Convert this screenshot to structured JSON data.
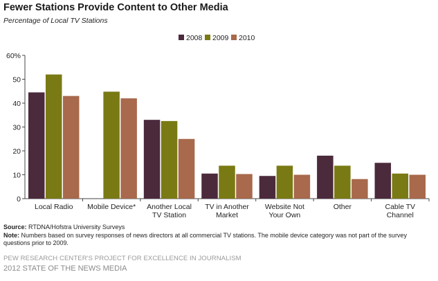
{
  "header": {
    "title": "Fewer Stations Provide Content to Other Media",
    "subtitle": "Percentage of Local TV Stations"
  },
  "footer": {
    "source_label": "Source:",
    "source_text": "RTDNA/Hofstra University Surveys",
    "note_label": "Note:",
    "note_text": "Numbers based on survey responses of news directors at all commercial TV stations. The mobile device category was not part of the survey questions prior to 2009.",
    "org_line": "PEW RESEARCH CENTER'S PROJECT FOR EXCELLENCE IN JOURNALISM",
    "report_line": "2012 STATE OF THE NEWS MEDIA"
  },
  "chart_data": {
    "type": "bar",
    "title": "Fewer Stations Provide Content to Other Media",
    "subtitle": "Percentage of Local TV Stations",
    "categories": [
      [
        "Local Radio"
      ],
      [
        "Mobile Device*"
      ],
      [
        "Another Local",
        "TV Station"
      ],
      [
        "TV in Another",
        "Market"
      ],
      [
        "Website Not",
        "Your Own"
      ],
      [
        "Other"
      ],
      [
        "Cable TV",
        "Channel"
      ]
    ],
    "series": [
      {
        "name": "2008",
        "color": "#4b2a3c",
        "values": [
          44.5,
          null,
          33,
          10.5,
          9.5,
          18,
          15
        ]
      },
      {
        "name": "2009",
        "color": "#7a7a14",
        "values": [
          52,
          44.8,
          32.5,
          13.8,
          13.8,
          13.8,
          10.5
        ]
      },
      {
        "name": "2010",
        "color": "#a8694c",
        "values": [
          43,
          42,
          25,
          10.3,
          10,
          8.2,
          10
        ]
      }
    ],
    "yticks": [
      "0",
      "10",
      "20",
      "30",
      "40",
      "50",
      "60%"
    ],
    "ylim": [
      0,
      60
    ],
    "legend_position": "top-center",
    "grid": false
  }
}
